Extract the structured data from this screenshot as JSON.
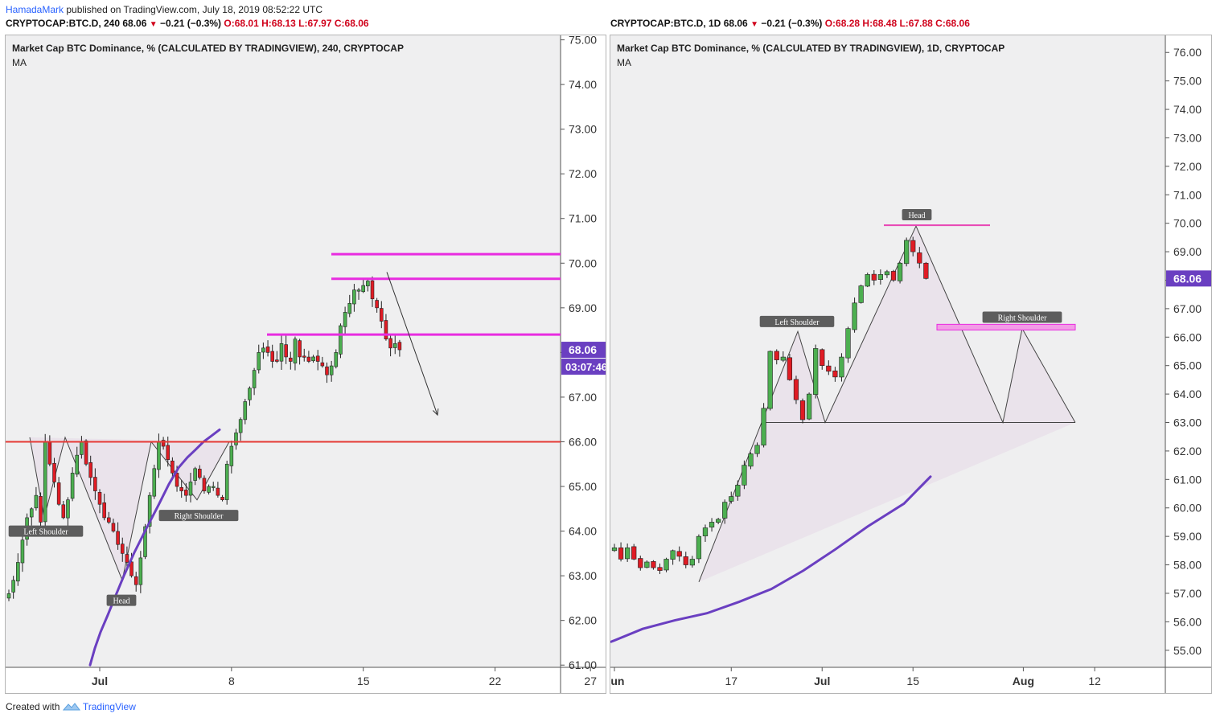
{
  "header": {
    "author": "HamadaMark",
    "published": "published on TradingView.com, July 18, 2019 08:52:22 UTC"
  },
  "left_ohlc": {
    "symbol": "CRYPTOCAP:BTC.D, 240",
    "last": "68.06",
    "change": "−0.21 (−0.3%)",
    "o": "O:68.01",
    "h": "H:68.13",
    "l": "L:67.97",
    "c": "C:68.06"
  },
  "right_ohlc": {
    "symbol": "CRYPTOCAP:BTC.D, 1D",
    "last": "68.06",
    "change": "−0.21 (−0.3%)",
    "o": "O:68.28",
    "h": "H:68.48",
    "l": "L:67.88",
    "c": "C:68.06"
  },
  "footer": {
    "prefix": "Created with",
    "brand": "TradingView"
  },
  "colors": {
    "up": "#4caf50",
    "down": "#e01b24",
    "ma": "#6a3fc1",
    "magenta": "#e82ce0",
    "red_line": "#e53935",
    "pink": "#e846b4"
  },
  "chart_data": [
    {
      "type": "candlestick",
      "title": "Market Cap BTC Dominance, % (CALCULATED BY TRADINGVIEW), 240, CRYPTOCAP",
      "indicator": "MA",
      "ylim": [
        60.95,
        75.1
      ],
      "yticks": [
        "75.00",
        "74.00",
        "73.00",
        "72.00",
        "71.00",
        "70.00",
        "69.00",
        "68.00",
        "67.00",
        "66.00",
        "65.00",
        "64.00",
        "63.00",
        "62.00",
        "61.00"
      ],
      "xticks": [
        {
          "label": "Jul",
          "index": 20
        },
        {
          "label": "8",
          "index": 49
        },
        {
          "label": "15",
          "index": 78
        },
        {
          "label": "22",
          "index": 107
        },
        {
          "label": "27",
          "index": 128
        }
      ],
      "n_slots": 135,
      "price_label": "68.06",
      "countdown": "03:07:46",
      "closes": [
        62.6,
        62.9,
        63.3,
        63.8,
        64.3,
        64.5,
        64.8,
        64.2,
        66.0,
        65.5,
        65.1,
        64.6,
        64.3,
        64.7,
        65.3,
        65.7,
        66.0,
        65.5,
        65.2,
        64.9,
        64.6,
        64.3,
        64.2,
        64.0,
        63.7,
        63.5,
        63.3,
        63.0,
        62.8,
        63.4,
        64.1,
        64.8,
        65.4,
        66.0,
        65.9,
        65.6,
        65.3,
        65.0,
        64.9,
        64.8,
        65.1,
        65.4,
        65.2,
        64.9,
        65.0,
        65.0,
        64.8,
        64.7,
        65.5,
        65.9,
        66.2,
        66.5,
        66.9,
        67.2,
        67.6,
        68.0,
        68.1,
        68.0,
        67.8,
        67.8,
        68.2,
        67.9,
        67.8,
        68.3,
        67.9,
        67.9,
        67.8,
        67.9,
        67.8,
        67.7,
        67.5,
        67.7,
        68.0,
        68.6,
        68.9,
        69.1,
        69.4,
        69.4,
        69.5,
        69.6,
        69.2,
        69.0,
        68.7,
        68.3,
        68.1,
        68.2,
        68.06
      ],
      "ma": [
        [
          105,
          61.0
        ],
        [
          111,
          61.38
        ],
        [
          118,
          61.74
        ],
        [
          127,
          62.12
        ],
        [
          136,
          62.52
        ],
        [
          147,
          63.0
        ],
        [
          160,
          63.52
        ],
        [
          175,
          64.06
        ],
        [
          190,
          64.58
        ],
        [
          203,
          65.05
        ],
        [
          215,
          65.42
        ],
        [
          226,
          65.65
        ],
        [
          236,
          65.82
        ],
        [
          246,
          66.0
        ],
        [
          255,
          66.12
        ],
        [
          266,
          66.27
        ]
      ],
      "levels": [
        {
          "color": "magenta",
          "y": 70.2,
          "x_from": 405,
          "x_to": 690,
          "width": 3
        },
        {
          "color": "magenta",
          "y": 69.65,
          "x_from": 405,
          "x_to": 690,
          "width": 3
        },
        {
          "color": "magenta",
          "y": 68.4,
          "x_from": 325,
          "x_to": 690,
          "width": 3
        },
        {
          "color": "red_line",
          "y": 66.0,
          "x_from": 0,
          "x_to": 690,
          "width": 2
        }
      ],
      "pattern": [
        [
          30,
          66.1
        ],
        [
          48,
          64.3
        ],
        [
          74,
          66.1
        ],
        [
          145,
          62.9
        ],
        [
          181,
          66.0
        ],
        [
          238,
          64.7
        ],
        [
          278,
          66.0
        ]
      ],
      "arrow": [
        [
          474,
          69.8
        ],
        [
          537,
          66.6
        ]
      ],
      "labels": [
        {
          "text": "Left Shoulder",
          "x": 50,
          "y": 64.0
        },
        {
          "text": "Head",
          "x": 144,
          "y": 62.45
        },
        {
          "text": "Right Shoulder",
          "x": 240,
          "y": 64.35
        }
      ]
    },
    {
      "type": "candlestick",
      "title": "Market Cap BTC Dominance, % (CALCULATED BY TRADINGVIEW), 1D, CRYPTOCAP",
      "indicator": "MA",
      "ylim": [
        54.4,
        76.6
      ],
      "yticks": [
        "76.00",
        "75.00",
        "74.00",
        "73.00",
        "72.00",
        "71.00",
        "70.00",
        "69.00",
        "68.00",
        "67.00",
        "66.00",
        "65.00",
        "64.00",
        "63.00",
        "62.00",
        "61.00",
        "60.00",
        "59.00",
        "58.00",
        "57.00",
        "56.00",
        "55.00"
      ],
      "xticks": [
        {
          "label": "Jun",
          "index": 0
        },
        {
          "label": "17",
          "index": 18
        },
        {
          "label": "Jul",
          "index": 32
        },
        {
          "label": "15",
          "index": 46
        },
        {
          "label": "Aug",
          "index": 63
        },
        {
          "label": "12",
          "index": 74
        }
      ],
      "n_slots": 86,
      "price_label": "68.06",
      "closes": [
        58.6,
        58.2,
        58.6,
        58.2,
        57.9,
        58.1,
        57.9,
        57.8,
        58.2,
        58.5,
        58.3,
        58.0,
        58.2,
        59.0,
        59.3,
        59.5,
        59.6,
        60.2,
        60.4,
        60.8,
        61.5,
        61.9,
        62.2,
        63.5,
        65.5,
        65.2,
        65.3,
        64.5,
        63.8,
        63.1,
        64.0,
        65.6,
        65.0,
        64.8,
        64.6,
        65.3,
        66.3,
        67.2,
        67.8,
        68.2,
        68.0,
        68.2,
        68.3,
        68.0,
        68.6,
        69.4,
        69.0,
        68.6,
        68.06
      ],
      "ma": [
        [
          1,
          55.3
        ],
        [
          40,
          55.75
        ],
        [
          80,
          56.05
        ],
        [
          120,
          56.3
        ],
        [
          160,
          56.7
        ],
        [
          200,
          57.15
        ],
        [
          240,
          57.8
        ],
        [
          280,
          58.55
        ],
        [
          320,
          59.35
        ],
        [
          365,
          60.15
        ],
        [
          398,
          61.1
        ]
      ],
      "levels": [
        {
          "color": "pink",
          "y": 69.93,
          "x_from": 340,
          "x_to": 472,
          "width": 2
        }
      ],
      "zone": {
        "y_top": 66.45,
        "y_bottom": 66.25,
        "x_from": 406,
        "x_to": 578
      },
      "neckline": [
        [
          188,
          63.0
        ],
        [
          578,
          63.0
        ]
      ],
      "pattern": [
        [
          110,
          57.4
        ],
        [
          188,
          63.0
        ],
        [
          233,
          66.2
        ],
        [
          267,
          63.0
        ],
        [
          380,
          69.9
        ],
        [
          488,
          63.0
        ],
        [
          512,
          66.3
        ],
        [
          578,
          63.0
        ]
      ],
      "labels": [
        {
          "text": "Head",
          "x": 381,
          "y": 70.3
        },
        {
          "text": "Left Shoulder",
          "x": 232,
          "y": 66.55
        },
        {
          "text": "Right Shoulder",
          "x": 512,
          "y": 66.7
        }
      ]
    }
  ]
}
